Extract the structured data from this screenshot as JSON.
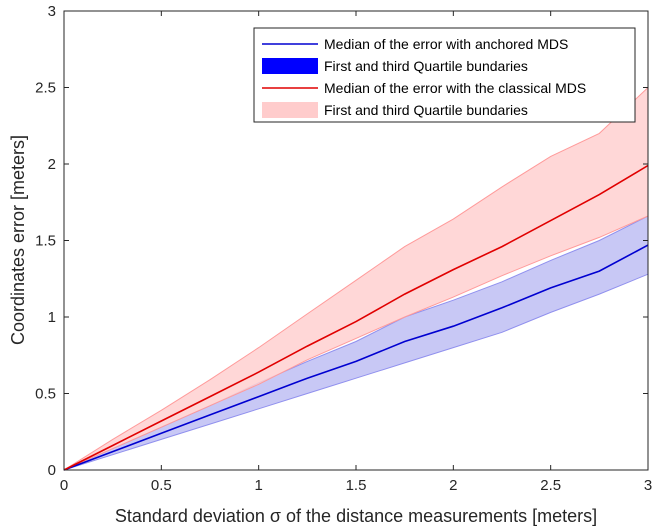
{
  "chart_data": {
    "type": "line",
    "title": "",
    "xlabel": "Standard deviation σ of the distance measurements [meters]",
    "ylabel": "Coordinates error [meters]",
    "xlim": [
      0,
      3
    ],
    "ylim": [
      0,
      3
    ],
    "xticks": [
      "0",
      "0.5",
      "1",
      "1.5",
      "2",
      "2.5",
      "3"
    ],
    "yticks": [
      "0",
      "0.5",
      "1",
      "1.5",
      "2",
      "2.5",
      "3"
    ],
    "grid": false,
    "legend_position": "top-right",
    "x": [
      0,
      0.25,
      0.5,
      0.75,
      1.0,
      1.25,
      1.5,
      1.75,
      2.0,
      2.25,
      2.5,
      2.75,
      3.0
    ],
    "series": [
      {
        "name": "Median of the error with anchored MDS",
        "kind": "line",
        "color": "#0000d0",
        "values": [
          0,
          0.12,
          0.24,
          0.36,
          0.48,
          0.6,
          0.71,
          0.84,
          0.94,
          1.06,
          1.19,
          1.3,
          1.47
        ]
      },
      {
        "name": "First and third Quartile bundaries",
        "kind": "band",
        "color": "#0000ff",
        "fill": "#c8c8f5",
        "edge": "#9090ee",
        "lower": [
          0,
          0.1,
          0.2,
          0.3,
          0.4,
          0.5,
          0.6,
          0.7,
          0.8,
          0.9,
          1.03,
          1.15,
          1.28
        ],
        "upper": [
          0,
          0.14,
          0.28,
          0.42,
          0.57,
          0.71,
          0.84,
          1.0,
          1.11,
          1.23,
          1.37,
          1.5,
          1.66
        ]
      },
      {
        "name": "Median of the error with the classical MDS",
        "kind": "line",
        "color": "#e00000",
        "values": [
          0,
          0.16,
          0.32,
          0.48,
          0.64,
          0.81,
          0.97,
          1.15,
          1.31,
          1.46,
          1.63,
          1.8,
          1.99
        ]
      },
      {
        "name": "First and third Quartile bundaries",
        "kind": "band",
        "color": "#ffcccc",
        "fill": "#ffd0d0",
        "edge": "#ff9a9a",
        "lower": [
          0,
          0.14,
          0.28,
          0.42,
          0.56,
          0.72,
          0.86,
          1.0,
          1.13,
          1.27,
          1.4,
          1.52,
          1.66
        ],
        "upper": [
          0,
          0.2,
          0.39,
          0.59,
          0.8,
          1.02,
          1.24,
          1.46,
          1.64,
          1.85,
          2.05,
          2.2,
          2.5
        ]
      }
    ],
    "legend": [
      {
        "label": "Median of the error with anchored MDS",
        "kind": "line",
        "color": "#0000d0"
      },
      {
        "label": "First and third Quartile bundaries",
        "kind": "patch",
        "color": "#0000ff"
      },
      {
        "label": "Median of the error with the classical MDS",
        "kind": "line",
        "color": "#e00000"
      },
      {
        "label": "First and third Quartile bundaries",
        "kind": "patch",
        "color": "#ffcccc"
      }
    ]
  }
}
